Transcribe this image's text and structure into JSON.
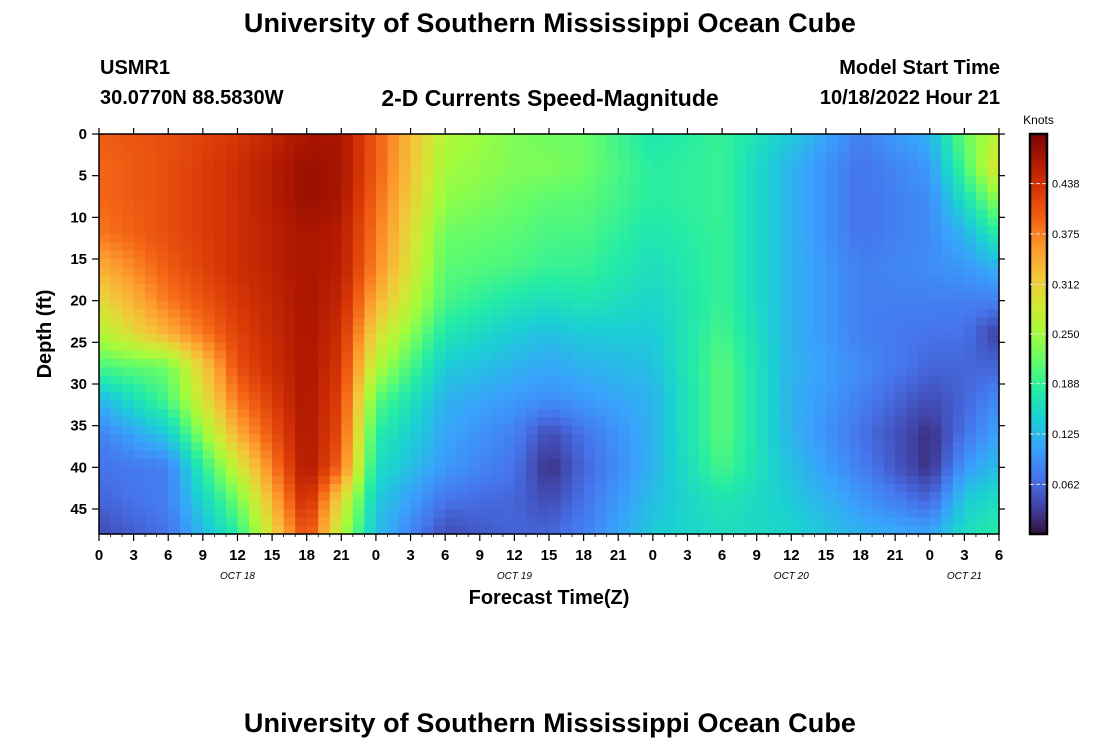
{
  "header": {
    "title": "University of Southern Mississippi Ocean Cube",
    "station": "USMR1",
    "location": "30.0770N  88.5830W",
    "model_start_label": "Model Start Time",
    "model_start_value": "10/18/2022 Hour 21",
    "bottom_title": "University of Southern Mississippi Ocean Cube"
  },
  "chart_data": {
    "type": "heatmap",
    "title": "2-D Currents Speed-Magnitude",
    "xlabel": "Forecast Time(Z)",
    "ylabel": "Depth (ft)",
    "x_tick_labels": [
      "0",
      "3",
      "6",
      "9",
      "12",
      "15",
      "18",
      "21",
      "0",
      "3",
      "6",
      "9",
      "12",
      "15",
      "18",
      "21",
      "0",
      "3",
      "6",
      "9",
      "12",
      "15",
      "18",
      "21",
      "0",
      "3",
      "6"
    ],
    "day_labels": [
      "OCT 18",
      "OCT 19",
      "OCT 20",
      "OCT 21"
    ],
    "y_ticks": [
      0,
      5,
      10,
      15,
      20,
      25,
      30,
      35,
      40,
      45
    ],
    "ylim": [
      0,
      48
    ],
    "x_hours_range": [
      0,
      78
    ],
    "colorbar": {
      "title": "Knots",
      "min": 0,
      "max": 0.5,
      "tick_labels": [
        "0.438",
        "0.375",
        "0.312",
        "0.250",
        "0.188",
        "0.125",
        "0.062"
      ],
      "tick_values": [
        0.438,
        0.375,
        0.312,
        0.25,
        0.188,
        0.125,
        0.062
      ],
      "colormap": [
        "#30123b",
        "#4145ab",
        "#4675ed",
        "#39a2fc",
        "#1bcfd4",
        "#24eca6",
        "#61fc6c",
        "#a4fc3b",
        "#d1e834",
        "#f3c63a",
        "#fe9b2d",
        "#f36315",
        "#d93806",
        "#b11901",
        "#7a0402"
      ]
    },
    "depths": [
      0,
      4,
      8,
      12,
      16,
      20,
      24,
      28,
      32,
      36,
      40,
      44,
      48
    ],
    "times_hours": [
      0,
      6,
      12,
      18,
      21,
      24,
      30,
      36,
      39,
      42,
      48,
      54,
      60,
      66,
      72,
      75,
      78
    ],
    "values": [
      [
        0.4,
        0.41,
        0.43,
        0.47,
        0.47,
        0.4,
        0.26,
        0.23,
        0.22,
        0.22,
        0.17,
        0.19,
        0.14,
        0.08,
        0.12,
        0.22,
        0.27
      ],
      [
        0.39,
        0.41,
        0.44,
        0.48,
        0.47,
        0.4,
        0.25,
        0.23,
        0.23,
        0.22,
        0.18,
        0.19,
        0.12,
        0.07,
        0.1,
        0.2,
        0.3
      ],
      [
        0.39,
        0.41,
        0.44,
        0.48,
        0.47,
        0.39,
        0.24,
        0.22,
        0.21,
        0.21,
        0.18,
        0.19,
        0.12,
        0.07,
        0.09,
        0.16,
        0.24
      ],
      [
        0.38,
        0.41,
        0.44,
        0.47,
        0.46,
        0.38,
        0.22,
        0.21,
        0.2,
        0.2,
        0.17,
        0.19,
        0.12,
        0.07,
        0.09,
        0.12,
        0.18
      ],
      [
        0.34,
        0.4,
        0.44,
        0.47,
        0.46,
        0.37,
        0.21,
        0.2,
        0.19,
        0.19,
        0.16,
        0.19,
        0.12,
        0.08,
        0.09,
        0.1,
        0.12
      ],
      [
        0.3,
        0.38,
        0.43,
        0.47,
        0.45,
        0.34,
        0.2,
        0.17,
        0.16,
        0.17,
        0.15,
        0.19,
        0.12,
        0.08,
        0.08,
        0.08,
        0.08
      ],
      [
        0.26,
        0.34,
        0.42,
        0.47,
        0.44,
        0.3,
        0.17,
        0.14,
        0.13,
        0.14,
        0.14,
        0.2,
        0.12,
        0.08,
        0.07,
        0.07,
        0.03
      ],
      [
        0.2,
        0.22,
        0.41,
        0.47,
        0.43,
        0.26,
        0.14,
        0.12,
        0.11,
        0.12,
        0.13,
        0.21,
        0.12,
        0.09,
        0.06,
        0.06,
        0.06
      ],
      [
        0.12,
        0.2,
        0.38,
        0.47,
        0.42,
        0.21,
        0.12,
        0.1,
        0.09,
        0.1,
        0.12,
        0.21,
        0.12,
        0.08,
        0.04,
        0.06,
        0.09
      ],
      [
        0.08,
        0.14,
        0.34,
        0.47,
        0.41,
        0.18,
        0.11,
        0.08,
        0.04,
        0.07,
        0.12,
        0.21,
        0.12,
        0.07,
        0.02,
        0.07,
        0.11
      ],
      [
        0.07,
        0.08,
        0.28,
        0.47,
        0.39,
        0.16,
        0.1,
        0.07,
        0.02,
        0.06,
        0.12,
        0.2,
        0.13,
        0.08,
        0.02,
        0.1,
        0.13
      ],
      [
        0.06,
        0.08,
        0.22,
        0.45,
        0.3,
        0.14,
        0.07,
        0.06,
        0.04,
        0.07,
        0.13,
        0.17,
        0.14,
        0.1,
        0.06,
        0.14,
        0.16
      ],
      [
        0.04,
        0.07,
        0.18,
        0.42,
        0.26,
        0.13,
        0.04,
        0.06,
        0.06,
        0.08,
        0.14,
        0.16,
        0.15,
        0.12,
        0.11,
        0.16,
        0.18
      ]
    ]
  }
}
